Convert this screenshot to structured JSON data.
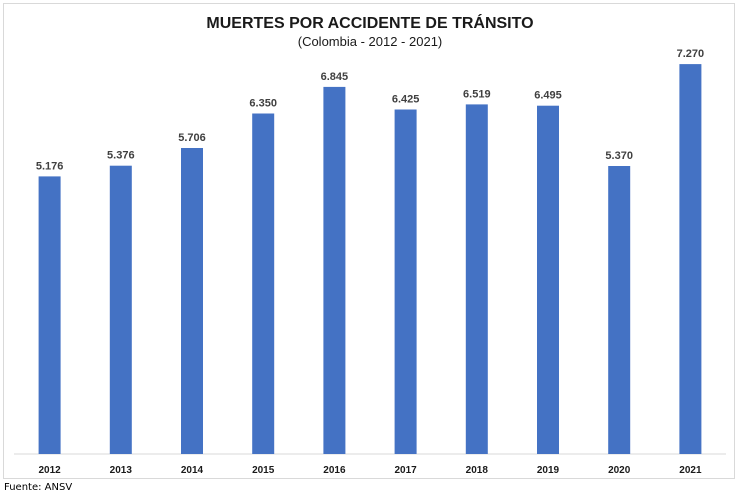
{
  "chart_data": {
    "type": "bar",
    "title": "MUERTES POR ACCIDENTE DE TRÁNSITO",
    "subtitle": "(Colombia - 2012 - 2021)",
    "categories": [
      "2012",
      "2013",
      "2014",
      "2015",
      "2016",
      "2017",
      "2018",
      "2019",
      "2020",
      "2021"
    ],
    "values": [
      5176,
      5376,
      5706,
      6350,
      6845,
      6425,
      6519,
      6495,
      5370,
      7270
    ],
    "data_labels": [
      "5.176",
      "5.376",
      "5.706",
      "6.350",
      "6.845",
      "6.425",
      "6.519",
      "6.495",
      "5.370",
      "7.270"
    ],
    "xlabel": "",
    "ylabel": "",
    "ylim": [
      0,
      8000
    ],
    "grid": false,
    "bar_color": "#4472c4",
    "axis_color": "#d9d9d9"
  },
  "footer": {
    "source": "Fuente: ANSV"
  }
}
